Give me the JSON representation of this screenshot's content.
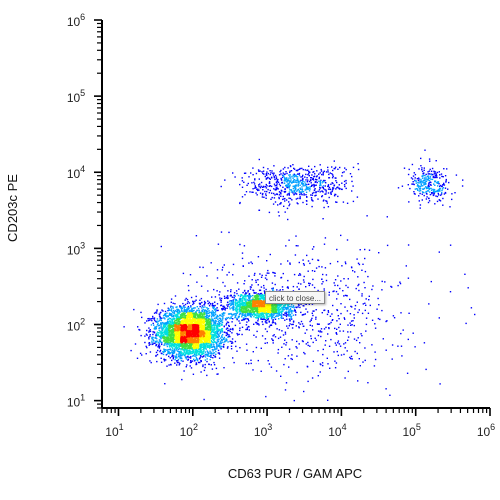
{
  "chart_data": {
    "type": "scatter",
    "subtype": "density-dot-plot",
    "title": "",
    "xlabel": "CD63 PUR / GAM APC",
    "ylabel": "CD203c PE",
    "xscale": "log",
    "yscale": "log",
    "xlim": [
      6,
      1000000
    ],
    "ylim": [
      8,
      1000000
    ],
    "x_ticks": [
      {
        "base": "10",
        "exp": "1",
        "value": 10
      },
      {
        "base": "10",
        "exp": "2",
        "value": 100
      },
      {
        "base": "10",
        "exp": "3",
        "value": 1000
      },
      {
        "base": "10",
        "exp": "4",
        "value": 10000
      },
      {
        "base": "10",
        "exp": "5",
        "value": 100000
      },
      {
        "base": "10",
        "exp": "6",
        "value": 1000000
      }
    ],
    "y_ticks": [
      {
        "base": "10",
        "exp": "1",
        "value": 10
      },
      {
        "base": "10",
        "exp": "2",
        "value": 100
      },
      {
        "base": "10",
        "exp": "3",
        "value": 1000
      },
      {
        "base": "10",
        "exp": "4",
        "value": 10000
      },
      {
        "base": "10",
        "exp": "5",
        "value": 100000
      },
      {
        "base": "10",
        "exp": "6",
        "value": 1000000
      }
    ],
    "grid": false,
    "legend": "none",
    "colormap": [
      "#0000ff",
      "#00a0ff",
      "#00e0e0",
      "#40e040",
      "#ffff00",
      "#ff8000",
      "#ff0000"
    ],
    "populations": [
      {
        "center_x": 90,
        "center_y": 80,
        "spread_x": 0.22,
        "spread_y": 0.16,
        "weight": 0.55
      },
      {
        "center_x": 800,
        "center_y": 180,
        "spread_x": 0.22,
        "spread_y": 0.09,
        "weight": 0.22
      },
      {
        "center_x": 2500,
        "center_y": 7000,
        "spread_x": 0.35,
        "spread_y": 0.13,
        "weight": 0.09
      },
      {
        "center_x": 150000,
        "center_y": 7000,
        "spread_x": 0.14,
        "spread_y": 0.12,
        "weight": 0.04
      },
      {
        "center_x": 3000,
        "center_y": 150,
        "spread_x": 0.7,
        "spread_y": 0.45,
        "weight": 0.1
      }
    ],
    "dot_color": "#1010e0"
  },
  "tooltip": {
    "label": "click to close..."
  }
}
